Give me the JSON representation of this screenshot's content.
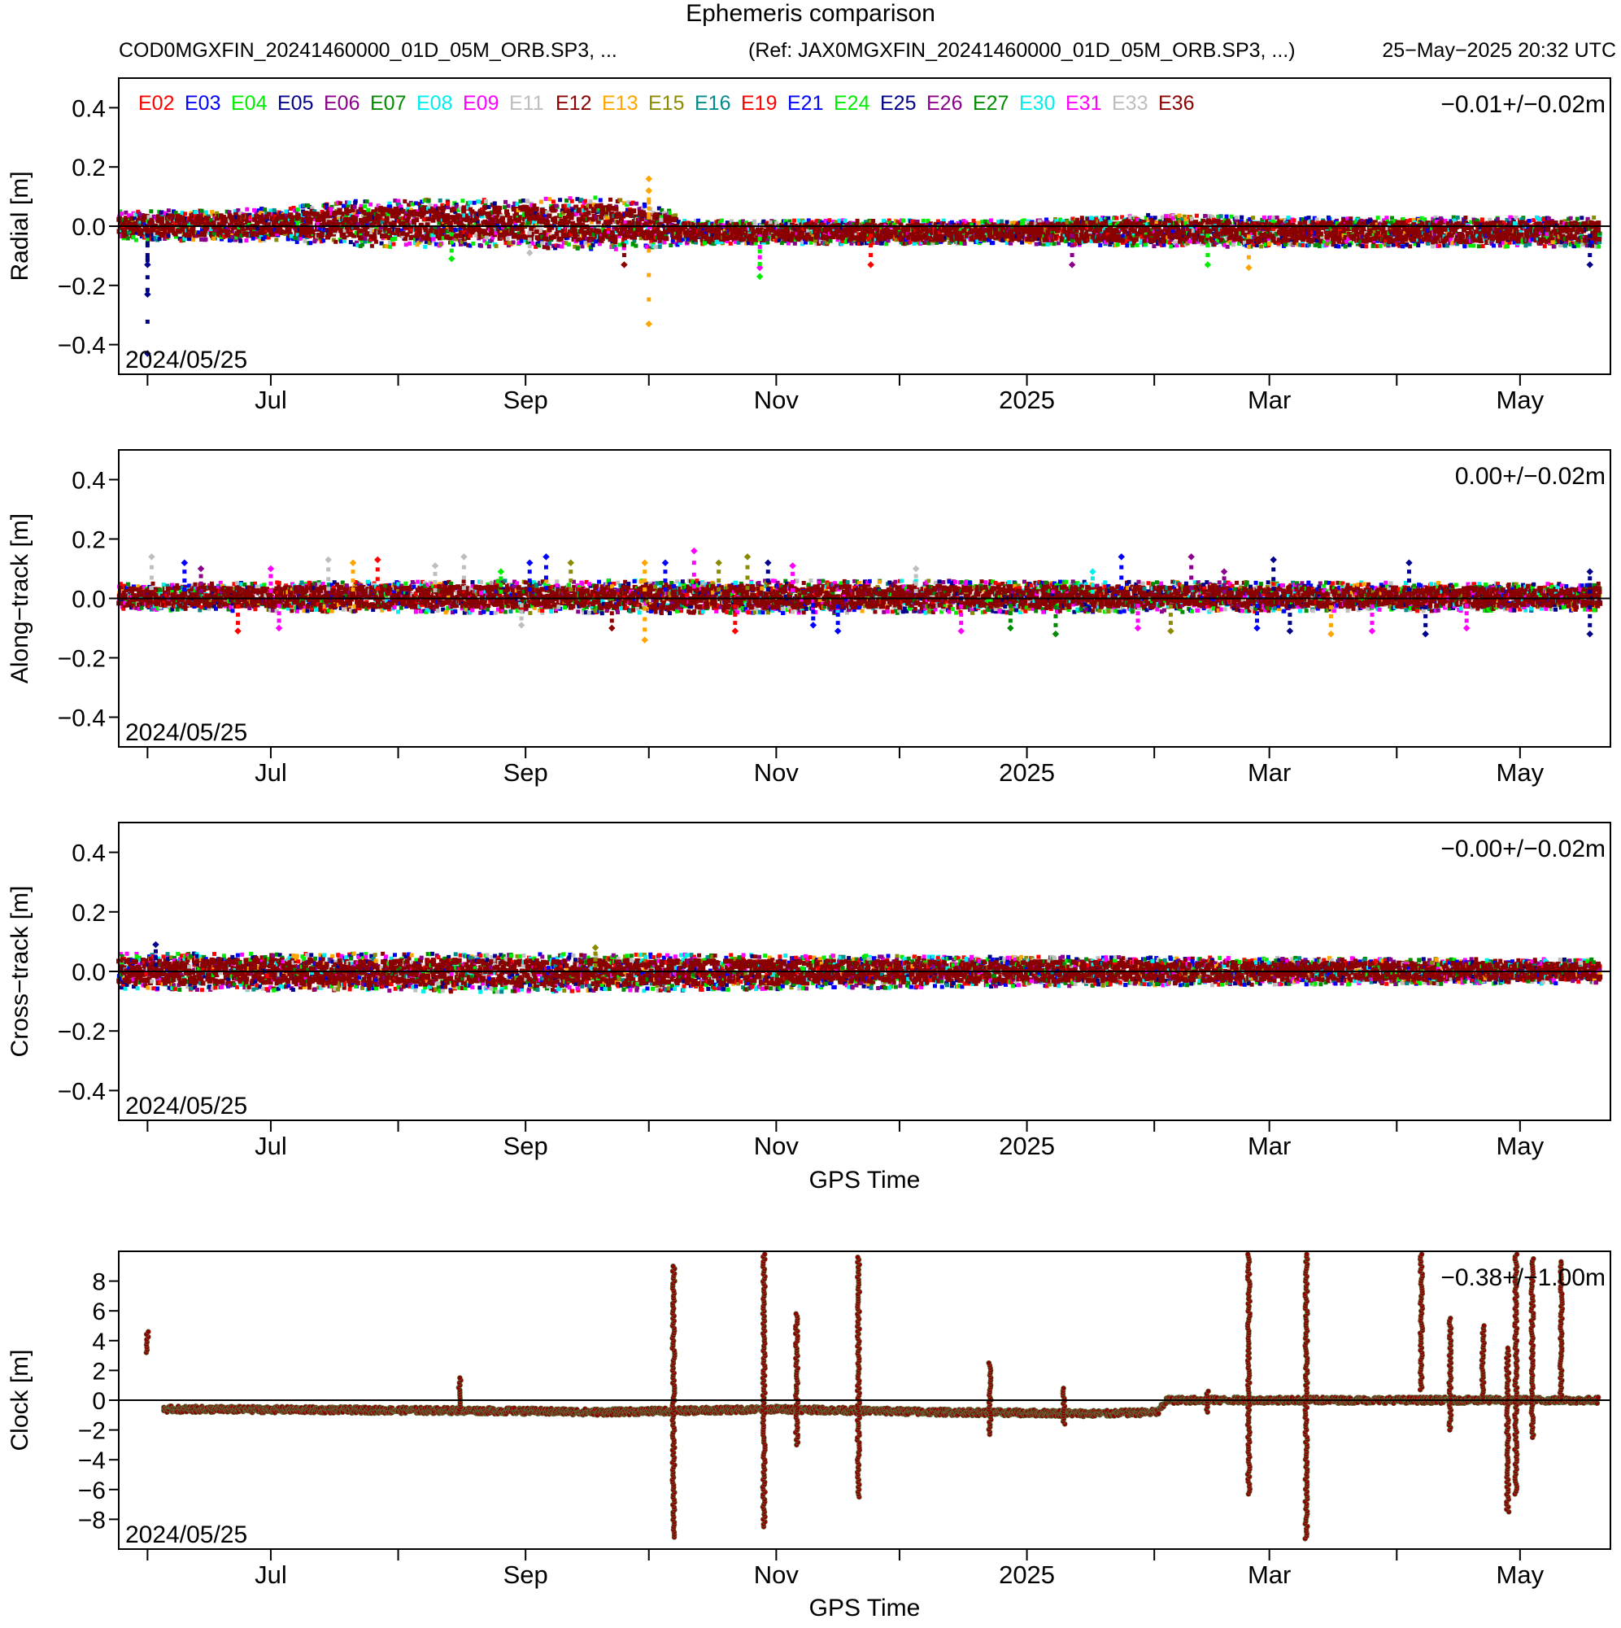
{
  "header": {
    "title": "Ephemeris comparison",
    "source_file": "COD0MGXFIN_20241460000_01D_05M_ORB.SP3, ...",
    "reference_file": "(Ref: JAX0MGXFIN_20241460000_01D_05M_ORB.SP3, ...)",
    "timestamp": "25−May−2025 20:32 UTC"
  },
  "legend": [
    {
      "label": "E02",
      "color": "#ff0000"
    },
    {
      "label": "E03",
      "color": "#0000ff"
    },
    {
      "label": "E04",
      "color": "#00ee00"
    },
    {
      "label": "E05",
      "color": "#00008b"
    },
    {
      "label": "E06",
      "color": "#8b008b"
    },
    {
      "label": "E07",
      "color": "#008b00"
    },
    {
      "label": "E08",
      "color": "#00eeee"
    },
    {
      "label": "E09",
      "color": "#ff00ff"
    },
    {
      "label": "E11",
      "color": "#bebebe"
    },
    {
      "label": "E12",
      "color": "#8b0000"
    },
    {
      "label": "E13",
      "color": "#ffa500"
    },
    {
      "label": "E15",
      "color": "#8b8b00"
    },
    {
      "label": "E16",
      "color": "#008b8b"
    },
    {
      "label": "E19",
      "color": "#ff0000"
    },
    {
      "label": "E21",
      "color": "#0000ff"
    },
    {
      "label": "E24",
      "color": "#00ee00"
    },
    {
      "label": "E25",
      "color": "#00008b"
    },
    {
      "label": "E26",
      "color": "#8b008b"
    },
    {
      "label": "E27",
      "color": "#008b00"
    },
    {
      "label": "E30",
      "color": "#00eeee"
    },
    {
      "label": "E31",
      "color": "#ff00ff"
    },
    {
      "label": "E33",
      "color": "#bebebe"
    },
    {
      "label": "E36",
      "color": "#8b0000"
    }
  ],
  "chart_data": [
    {
      "id": "radial",
      "type": "scatter",
      "ylabel": "Radial [m]",
      "xlabel": "",
      "ylim": [
        -0.5,
        0.5
      ],
      "yticks": [
        -0.4,
        -0.2,
        0.0,
        0.2,
        0.4
      ],
      "ytick_labels": [
        "−0.4",
        "−0.2",
        "0.0",
        "0.2",
        "0.4"
      ],
      "xlim": [
        "2024-05-25",
        "2025-05-23"
      ],
      "xtick_labels": [
        "Jul",
        "Sep",
        "Nov",
        "2025",
        "Mar",
        "May"
      ],
      "stat": "−0.01+/−0.02m",
      "start_label": "2024/05/25",
      "zero_line": true,
      "band": [
        {
          "x": "2024-05-25",
          "low": -0.05,
          "high": 0.05
        },
        {
          "x": "2024-07-01",
          "low": -0.05,
          "high": 0.06
        },
        {
          "x": "2024-07-25",
          "low": -0.07,
          "high": 0.09
        },
        {
          "x": "2024-08-25",
          "low": -0.07,
          "high": 0.09
        },
        {
          "x": "2024-09-20",
          "low": -0.08,
          "high": 0.1
        },
        {
          "x": "2024-10-05",
          "low": -0.07,
          "high": 0.06
        },
        {
          "x": "2024-10-10",
          "low": -0.06,
          "high": 0.02
        },
        {
          "x": "2024-12-01",
          "low": -0.06,
          "high": 0.02
        },
        {
          "x": "2025-01-01",
          "low": -0.06,
          "high": 0.02
        },
        {
          "x": "2025-02-01",
          "low": -0.07,
          "high": 0.04
        },
        {
          "x": "2025-03-01",
          "low": -0.07,
          "high": 0.03
        },
        {
          "x": "2025-05-20",
          "low": -0.07,
          "high": 0.03
        }
      ],
      "outliers": [
        {
          "x": "2024-06-01",
          "y": -0.23,
          "c": "#00008b"
        },
        {
          "x": "2024-06-01",
          "y": -0.13,
          "c": "#00008b"
        },
        {
          "x": "2024-06-01",
          "y": -0.43,
          "c": "#00008b"
        },
        {
          "x": "2024-08-14",
          "y": -0.11,
          "c": "#00ee00"
        },
        {
          "x": "2024-09-02",
          "y": -0.09,
          "c": "#bebebe"
        },
        {
          "x": "2024-10-01",
          "y": 0.16,
          "c": "#ffa500"
        },
        {
          "x": "2024-10-01",
          "y": 0.12,
          "c": "#ffa500"
        },
        {
          "x": "2024-10-01",
          "y": -0.33,
          "c": "#ffa500"
        },
        {
          "x": "2024-09-25",
          "y": -0.13,
          "c": "#8b0000"
        },
        {
          "x": "2024-10-28",
          "y": -0.14,
          "c": "#ff00ff"
        },
        {
          "x": "2024-10-28",
          "y": -0.17,
          "c": "#00ee00"
        },
        {
          "x": "2024-11-24",
          "y": -0.13,
          "c": "#ff0000"
        },
        {
          "x": "2025-01-12",
          "y": -0.13,
          "c": "#8b008b"
        },
        {
          "x": "2025-02-14",
          "y": -0.13,
          "c": "#00ee00"
        },
        {
          "x": "2025-02-24",
          "y": -0.14,
          "c": "#ffa500"
        },
        {
          "x": "2025-05-18",
          "y": -0.13,
          "c": "#00008b"
        }
      ]
    },
    {
      "id": "along",
      "type": "scatter",
      "ylabel": "Along−track [m]",
      "xlabel": "",
      "ylim": [
        -0.5,
        0.5
      ],
      "yticks": [
        -0.4,
        -0.2,
        0.0,
        0.2,
        0.4
      ],
      "ytick_labels": [
        "−0.4",
        "−0.2",
        "0.0",
        "0.2",
        "0.4"
      ],
      "xlim": [
        "2024-05-25",
        "2025-05-23"
      ],
      "xtick_labels": [
        "Jul",
        "Sep",
        "Nov",
        "2025",
        "Mar",
        "May"
      ],
      "stat": "0.00+/−0.02m",
      "start_label": "2024/05/25",
      "zero_line": true,
      "band": [
        {
          "x": "2024-05-25",
          "low": -0.04,
          "high": 0.05
        },
        {
          "x": "2024-09-01",
          "low": -0.05,
          "high": 0.06
        },
        {
          "x": "2024-12-01",
          "low": -0.05,
          "high": 0.06
        },
        {
          "x": "2025-05-20",
          "low": -0.04,
          "high": 0.05
        }
      ],
      "outliers": [
        {
          "x": "2024-06-02",
          "y": 0.14,
          "c": "#bebebe"
        },
        {
          "x": "2024-06-10",
          "y": 0.12,
          "c": "#0000ff"
        },
        {
          "x": "2024-06-14",
          "y": 0.1,
          "c": "#8b008b"
        },
        {
          "x": "2024-06-23",
          "y": -0.11,
          "c": "#ff0000"
        },
        {
          "x": "2024-07-01",
          "y": 0.1,
          "c": "#ff00ff"
        },
        {
          "x": "2024-07-03",
          "y": -0.1,
          "c": "#ff00ff"
        },
        {
          "x": "2024-07-15",
          "y": 0.13,
          "c": "#bebebe"
        },
        {
          "x": "2024-07-21",
          "y": 0.12,
          "c": "#ffa500"
        },
        {
          "x": "2024-07-27",
          "y": 0.13,
          "c": "#ff0000"
        },
        {
          "x": "2024-08-10",
          "y": 0.11,
          "c": "#bebebe"
        },
        {
          "x": "2024-08-17",
          "y": 0.14,
          "c": "#bebebe"
        },
        {
          "x": "2024-08-26",
          "y": 0.09,
          "c": "#00ee00"
        },
        {
          "x": "2024-08-31",
          "y": -0.09,
          "c": "#bebebe"
        },
        {
          "x": "2024-09-02",
          "y": 0.12,
          "c": "#0000ff"
        },
        {
          "x": "2024-09-06",
          "y": 0.14,
          "c": "#0000ff"
        },
        {
          "x": "2024-09-12",
          "y": 0.12,
          "c": "#8b8b00"
        },
        {
          "x": "2024-09-22",
          "y": -0.1,
          "c": "#8b0000"
        },
        {
          "x": "2024-09-30",
          "y": 0.12,
          "c": "#ffa500"
        },
        {
          "x": "2024-09-30",
          "y": -0.14,
          "c": "#ffa500"
        },
        {
          "x": "2024-10-05",
          "y": 0.12,
          "c": "#0000ff"
        },
        {
          "x": "2024-10-12",
          "y": 0.16,
          "c": "#ff00ff"
        },
        {
          "x": "2024-10-18",
          "y": 0.12,
          "c": "#8b8b00"
        },
        {
          "x": "2024-10-22",
          "y": -0.11,
          "c": "#ff0000"
        },
        {
          "x": "2024-10-25",
          "y": 0.14,
          "c": "#8b8b00"
        },
        {
          "x": "2024-10-30",
          "y": 0.12,
          "c": "#00008b"
        },
        {
          "x": "2024-11-05",
          "y": 0.11,
          "c": "#ff00ff"
        },
        {
          "x": "2024-11-10",
          "y": -0.09,
          "c": "#0000ff"
        },
        {
          "x": "2024-11-16",
          "y": -0.11,
          "c": "#0000ff"
        },
        {
          "x": "2024-12-05",
          "y": 0.1,
          "c": "#bebebe"
        },
        {
          "x": "2024-12-16",
          "y": -0.11,
          "c": "#ff00ff"
        },
        {
          "x": "2024-12-28",
          "y": -0.1,
          "c": "#008b00"
        },
        {
          "x": "2025-01-08",
          "y": -0.12,
          "c": "#008b00"
        },
        {
          "x": "2025-01-17",
          "y": 0.09,
          "c": "#00eeee"
        },
        {
          "x": "2025-01-24",
          "y": 0.14,
          "c": "#0000ff"
        },
        {
          "x": "2025-01-28",
          "y": -0.1,
          "c": "#ff00ff"
        },
        {
          "x": "2025-02-05",
          "y": -0.11,
          "c": "#8b8b00"
        },
        {
          "x": "2025-02-10",
          "y": 0.14,
          "c": "#8b008b"
        },
        {
          "x": "2025-02-18",
          "y": 0.09,
          "c": "#8b008b"
        },
        {
          "x": "2025-02-26",
          "y": -0.1,
          "c": "#0000ff"
        },
        {
          "x": "2025-03-02",
          "y": 0.13,
          "c": "#00008b"
        },
        {
          "x": "2025-03-06",
          "y": -0.11,
          "c": "#00008b"
        },
        {
          "x": "2025-03-16",
          "y": -0.12,
          "c": "#ffa500"
        },
        {
          "x": "2025-03-26",
          "y": -0.11,
          "c": "#ff00ff"
        },
        {
          "x": "2025-04-04",
          "y": 0.12,
          "c": "#00008b"
        },
        {
          "x": "2025-04-08",
          "y": -0.12,
          "c": "#00008b"
        },
        {
          "x": "2025-04-18",
          "y": -0.1,
          "c": "#ff00ff"
        },
        {
          "x": "2025-05-18",
          "y": -0.12,
          "c": "#00008b"
        },
        {
          "x": "2025-05-18",
          "y": 0.09,
          "c": "#00008b"
        }
      ]
    },
    {
      "id": "cross",
      "type": "scatter",
      "ylabel": "Cross−track [m]",
      "xlabel": "GPS Time",
      "ylim": [
        -0.5,
        0.5
      ],
      "yticks": [
        -0.4,
        -0.2,
        0.0,
        0.2,
        0.4
      ],
      "ytick_labels": [
        "−0.4",
        "−0.2",
        "0.0",
        "0.2",
        "0.4"
      ],
      "xlim": [
        "2024-05-25",
        "2025-05-23"
      ],
      "xtick_labels": [
        "Jul",
        "Sep",
        "Nov",
        "2025",
        "Mar",
        "May"
      ],
      "stat": "−0.00+/−0.02m",
      "start_label": "2024/05/25",
      "zero_line": true,
      "band": [
        {
          "x": "2024-05-25",
          "low": -0.06,
          "high": 0.06
        },
        {
          "x": "2024-09-01",
          "low": -0.07,
          "high": 0.06
        },
        {
          "x": "2025-01-01",
          "low": -0.05,
          "high": 0.05
        },
        {
          "x": "2025-05-20",
          "low": -0.04,
          "high": 0.04
        }
      ],
      "outliers": [
        {
          "x": "2024-06-03",
          "y": 0.09,
          "c": "#00008b"
        },
        {
          "x": "2024-09-18",
          "y": 0.08,
          "c": "#8b8b00"
        }
      ]
    },
    {
      "id": "clock",
      "type": "scatter",
      "ylabel": "Clock [m]",
      "xlabel": "GPS Time",
      "ylim": [
        -10,
        10
      ],
      "yticks": [
        -8,
        -6,
        -4,
        -2,
        0,
        2,
        4,
        6,
        8
      ],
      "ytick_labels": [
        "−8",
        "−6",
        "−4",
        "−2",
        "0",
        "2",
        "4",
        "6",
        "8"
      ],
      "xlim": [
        "2024-05-25",
        "2025-05-23"
      ],
      "xtick_labels": [
        "Jul",
        "Sep",
        "Nov",
        "2025",
        "Mar",
        "May"
      ],
      "stat": "−0.38+/−1.00m",
      "start_label": "2024/05/25",
      "zero_line": true,
      "trace": [
        {
          "x": "2024-05-25",
          "y": -0.6
        },
        {
          "x": "2024-06-01",
          "y": 4.3
        },
        {
          "x": "2024-06-05",
          "y": -0.6
        },
        {
          "x": "2024-08-20",
          "y": -0.7
        },
        {
          "x": "2024-09-20",
          "y": -0.8
        },
        {
          "x": "2024-11-01",
          "y": -0.6
        },
        {
          "x": "2024-12-10",
          "y": -0.8
        },
        {
          "x": "2025-01-20",
          "y": -0.9
        },
        {
          "x": "2025-02-02",
          "y": -0.8
        },
        {
          "x": "2025-02-04",
          "y": 0.0
        },
        {
          "x": "2025-03-01",
          "y": 0.0
        },
        {
          "x": "2025-05-20",
          "y": 0.0
        }
      ],
      "spikes": [
        {
          "x": "2024-06-01",
          "low": 3.2,
          "high": 4.6
        },
        {
          "x": "2024-08-16",
          "low": -0.8,
          "high": 1.5
        },
        {
          "x": "2024-10-07",
          "low": -9.2,
          "high": 9.0
        },
        {
          "x": "2024-10-29",
          "low": -8.5,
          "high": 9.8
        },
        {
          "x": "2024-11-06",
          "low": -3.0,
          "high": 5.8
        },
        {
          "x": "2024-11-21",
          "low": -6.5,
          "high": 9.6
        },
        {
          "x": "2024-12-23",
          "low": -2.3,
          "high": 2.5
        },
        {
          "x": "2025-01-10",
          "low": -1.6,
          "high": 0.8
        },
        {
          "x": "2025-02-14",
          "low": -0.8,
          "high": 0.6
        },
        {
          "x": "2025-02-24",
          "low": -6.3,
          "high": 9.8
        },
        {
          "x": "2025-03-10",
          "low": -9.3,
          "high": 9.8
        },
        {
          "x": "2025-04-07",
          "low": 0.7,
          "high": 9.8
        },
        {
          "x": "2025-04-14",
          "low": -2.0,
          "high": 5.5
        },
        {
          "x": "2025-04-22",
          "low": 0.2,
          "high": 5.0
        },
        {
          "x": "2025-04-28",
          "low": -7.5,
          "high": 3.5
        },
        {
          "x": "2025-04-30",
          "low": -6.3,
          "high": 9.8
        },
        {
          "x": "2025-05-04",
          "low": -2.5,
          "high": 9.5
        },
        {
          "x": "2025-05-11",
          "low": 0.0,
          "high": 9.3
        }
      ]
    }
  ]
}
